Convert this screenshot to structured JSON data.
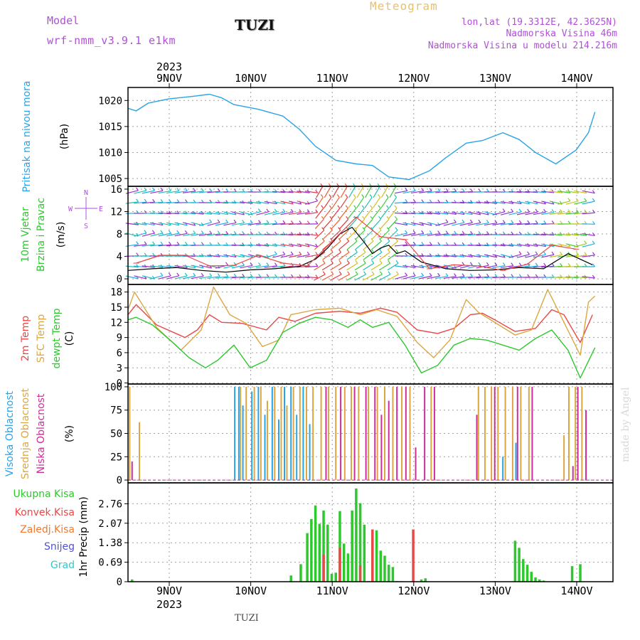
{
  "header": {
    "model_label": "Model",
    "model_name": "wrf-nmm_v3.9.1  e1km",
    "station": "TUZI",
    "product": "Meteogram",
    "lonlat": "lon,lat (19.3312E, 42.3625N)",
    "elevation": "Nadmorska Visina 46m",
    "model_elevation": "Nadmorska Visina u modelu 214.216m"
  },
  "footer": {
    "station": "TUZI",
    "credit": "made by Angel"
  },
  "colors": {
    "pressure": "#29a3e8",
    "temp2m": "#e84848",
    "sfc_temp": "#dca742",
    "dewpt": "#2ec82e",
    "cloud_high": "#29a3e8",
    "cloud_mid": "#dca742",
    "cloud_low": "#cc2e9a",
    "rain_total": "#2ec82e",
    "rain_conv": "#e84848",
    "rain_frozen": "#f07a32",
    "snow": "#5050e0",
    "graupel": "#2ecac8",
    "wind_speed": "#000000",
    "gust": "#e84848",
    "grid": "#a0a0a0",
    "frame": "#000000",
    "model_text": "#b050d8",
    "meteogram_text": "#e8c070"
  },
  "time_axis": {
    "year_label": "2023",
    "day_labels": [
      "9NOV",
      "10NOV",
      "11NOV",
      "12NOV",
      "13NOV",
      "14NOV"
    ]
  },
  "chart_data": [
    {
      "type": "line",
      "title": "",
      "ylabel": "Pritisak na nivou mora",
      "unit": "(hPa)",
      "ylim": [
        1003.5,
        1022.5
      ],
      "yticks": [
        "1005",
        "1010",
        "1015",
        "1020"
      ],
      "xlim": [
        0,
        5.73
      ],
      "grid": true,
      "series": [
        {
          "name": "Pritisak na nivou mora",
          "color": "#29a3e8",
          "x": [
            0.0,
            0.1,
            0.25,
            0.5,
            0.8,
            1.0,
            1.15,
            1.3,
            1.6,
            1.9,
            2.1,
            2.3,
            2.55,
            2.8,
            3.0,
            3.2,
            3.45,
            3.7,
            3.9,
            4.15,
            4.35,
            4.6,
            4.8,
            5.0,
            5.25,
            5.5,
            5.65,
            5.73
          ],
          "y": [
            1018.5,
            1018.0,
            1019.5,
            1020.3,
            1020.8,
            1021.2,
            1020.5,
            1019.2,
            1018.3,
            1017.0,
            1014.5,
            1011.2,
            1008.5,
            1007.8,
            1007.5,
            1005.3,
            1004.8,
            1006.5,
            1009.0,
            1011.8,
            1012.3,
            1013.8,
            1012.5,
            1010.0,
            1007.8,
            1010.5,
            1013.8,
            1017.8
          ]
        }
      ]
    },
    {
      "type": "line",
      "title": "",
      "ylabel": "10m Vjetar Brzina i Pravac",
      "unit": "(m/s)",
      "ylim": [
        -1,
        16.5
      ],
      "yticks": [
        "0",
        "4",
        "8",
        "12",
        "16"
      ],
      "xlim": [
        0,
        5.73
      ],
      "grid": true,
      "compass": [
        "N",
        "E",
        "S",
        "W"
      ],
      "series": [
        {
          "name": "wind speed",
          "color": "#000000",
          "x": [
            0.0,
            0.3,
            0.6,
            0.9,
            1.2,
            1.5,
            1.8,
            2.1,
            2.3,
            2.45,
            2.6,
            2.75,
            2.9,
            3.0,
            3.1,
            3.2,
            3.3,
            3.4,
            3.6,
            3.9,
            4.2,
            4.5,
            4.8,
            5.1,
            5.4,
            5.7
          ],
          "y": [
            1.5,
            1.8,
            2.0,
            1.5,
            1.2,
            1.6,
            1.8,
            2.2,
            3.5,
            5.5,
            8.0,
            9.2,
            6.5,
            4.5,
            5.5,
            6.0,
            4.5,
            5.0,
            3.0,
            1.8,
            1.5,
            1.6,
            2.0,
            1.8,
            4.5,
            2.5
          ]
        },
        {
          "name": "gust",
          "color": "#e84848",
          "x": [
            0.1,
            0.4,
            0.7,
            1.0,
            1.3,
            1.6,
            1.9,
            2.2,
            2.5,
            2.8,
            3.1,
            3.4,
            3.7,
            4.0,
            4.3,
            4.6,
            4.9,
            5.2,
            5.5
          ],
          "y": [
            2.8,
            4.2,
            4.2,
            2.3,
            2.4,
            4.2,
            2.8,
            2.3,
            6.6,
            11.0,
            7.5,
            7.0,
            1.8,
            2.5,
            2.3,
            1.5,
            2.6,
            6.0,
            5.3
          ]
        }
      ]
    },
    {
      "type": "line",
      "title": "",
      "ylabel": "2m Temp / SFC Temp / dewpt Temp",
      "unit": "(C)",
      "ylim": [
        -0.2,
        19.5
      ],
      "yticks": [
        "0",
        "3",
        "6",
        "9",
        "12",
        "15",
        "18"
      ],
      "xlim": [
        0,
        5.73
      ],
      "grid": true,
      "series": [
        {
          "name": "2m Temp",
          "color": "#e84848",
          "x": [
            0.0,
            0.1,
            0.35,
            0.7,
            0.85,
            1.0,
            1.15,
            1.4,
            1.7,
            1.85,
            2.05,
            2.3,
            2.6,
            2.85,
            3.1,
            3.3,
            3.55,
            3.8,
            4.0,
            4.2,
            4.35,
            4.5,
            4.75,
            5.0,
            5.2,
            5.35,
            5.55,
            5.7
          ],
          "y": [
            13.5,
            15.5,
            11.5,
            9.0,
            10.5,
            13.5,
            12.0,
            11.8,
            10.5,
            13.0,
            12.2,
            13.8,
            14.2,
            13.8,
            14.8,
            14.0,
            10.5,
            9.8,
            10.8,
            13.5,
            13.8,
            12.5,
            10.2,
            10.8,
            14.5,
            13.5,
            8.0,
            13.5
          ]
        },
        {
          "name": "SFC Temp",
          "color": "#dca742",
          "x": [
            0.0,
            0.08,
            0.35,
            0.65,
            0.9,
            1.05,
            1.25,
            1.45,
            1.65,
            1.85,
            2.0,
            2.3,
            2.6,
            2.85,
            3.05,
            3.3,
            3.55,
            3.75,
            3.95,
            4.15,
            4.3,
            4.55,
            4.75,
            4.95,
            5.15,
            5.35,
            5.55,
            5.65,
            5.73
          ],
          "y": [
            14.5,
            18.0,
            11.0,
            6.5,
            10.5,
            19.0,
            13.5,
            11.8,
            7.2,
            8.5,
            13.5,
            14.5,
            14.8,
            13.5,
            14.5,
            13.2,
            8.0,
            5.0,
            8.5,
            16.5,
            14.0,
            11.5,
            9.5,
            10.5,
            18.5,
            12.0,
            5.5,
            16.0,
            17.2
          ]
        },
        {
          "name": "dewpt Temp",
          "color": "#2ec82e",
          "x": [
            0.0,
            0.1,
            0.3,
            0.55,
            0.75,
            0.95,
            1.1,
            1.3,
            1.5,
            1.7,
            1.9,
            2.1,
            2.3,
            2.5,
            2.7,
            2.85,
            3.0,
            3.2,
            3.4,
            3.6,
            3.8,
            4.0,
            4.2,
            4.4,
            4.6,
            4.8,
            5.0,
            5.2,
            5.4,
            5.55,
            5.73
          ],
          "y": [
            12.5,
            13.0,
            11.5,
            8.0,
            5.0,
            3.0,
            4.5,
            7.5,
            3.0,
            4.5,
            10.0,
            11.8,
            13.0,
            12.5,
            11.0,
            12.5,
            11.0,
            12.0,
            7.5,
            2.0,
            3.5,
            7.5,
            8.8,
            8.5,
            7.5,
            6.5,
            8.8,
            10.5,
            6.5,
            1.0,
            7.0
          ]
        }
      ]
    },
    {
      "type": "bar",
      "title": "",
      "ylabel": "Visoka Oblacnost / Srednja Oblacnost / Niska Oblacnost",
      "unit": "(%)",
      "ylim": [
        -3,
        103
      ],
      "yticks": [
        "0",
        "25",
        "50",
        "75",
        "100"
      ],
      "xlim": [
        0,
        5.73
      ],
      "grid": true,
      "series": [
        {
          "name": "Visoka Oblacnost",
          "color": "#29a3e8",
          "x": [
            1.31,
            1.36,
            1.41,
            1.52,
            1.6,
            1.68,
            1.77,
            1.85,
            1.92,
            2.0,
            2.07,
            2.15,
            2.23,
            4.6,
            4.76
          ],
          "y": [
            100,
            100,
            80,
            95,
            100,
            70,
            100,
            65,
            100,
            100,
            70,
            100,
            60,
            25,
            40
          ]
        },
        {
          "name": "Srednja Oblacnost",
          "color": "#dca742",
          "x": [
            0.02,
            0.14,
            1.38,
            1.45,
            1.55,
            1.63,
            1.71,
            1.8,
            1.88,
            1.95,
            2.03,
            2.11,
            2.19,
            2.27,
            2.37,
            2.46,
            2.55,
            2.66,
            2.74,
            2.83,
            2.95,
            3.06,
            3.15,
            3.25,
            3.36,
            3.46,
            3.72,
            4.3,
            4.38,
            4.46,
            4.54,
            4.63,
            4.72,
            4.82,
            4.92,
            5.35,
            5.41,
            5.49,
            5.57
          ],
          "y": [
            100,
            62,
            100,
            100,
            100,
            100,
            85,
            100,
            100,
            80,
            100,
            100,
            100,
            100,
            100,
            100,
            100,
            100,
            100,
            100,
            100,
            100,
            100,
            100,
            100,
            100,
            100,
            100,
            100,
            100,
            100,
            100,
            100,
            100,
            100,
            48,
            100,
            100,
            100
          ]
        },
        {
          "name": "Niska Oblacnost",
          "color": "#cc2e9a",
          "x": [
            0.05,
            2.43,
            2.61,
            2.78,
            2.92,
            3.03,
            3.11,
            3.2,
            3.3,
            3.41,
            3.53,
            3.64,
            3.76,
            4.28,
            4.5,
            4.78,
            4.96,
            5.46,
            5.52,
            5.62
          ],
          "y": [
            20,
            100,
            100,
            100,
            100,
            100,
            70,
            85,
            100,
            100,
            35,
            100,
            100,
            70,
            100,
            100,
            100,
            15,
            100,
            75
          ]
        }
      ]
    },
    {
      "type": "bar",
      "title": "",
      "ylabel": "1hr Precip",
      "unit": "(mm)",
      "ylim": [
        0,
        3.5
      ],
      "yticks": [
        "0",
        "0.69",
        "1.38",
        "2.07",
        "2.76"
      ],
      "xlim": [
        0,
        5.73
      ],
      "grid": true,
      "series": [
        {
          "name": "Ukupna Kisa",
          "color": "#2ec82e",
          "x": [
            0.05,
            2.0,
            2.12,
            2.2,
            2.25,
            2.3,
            2.35,
            2.4,
            2.45,
            2.5,
            2.55,
            2.6,
            2.65,
            2.7,
            2.75,
            2.8,
            2.85,
            2.9,
            2.95,
            3.0,
            3.05,
            3.1,
            3.15,
            3.2,
            3.25,
            3.3,
            3.35,
            3.6,
            3.65,
            4.5,
            4.75,
            4.8,
            4.85,
            4.9,
            4.95,
            5.0,
            5.05,
            5.1,
            5.45,
            5.55
          ],
          "y": [
            0.08,
            0.22,
            0.62,
            1.72,
            2.22,
            2.7,
            2.05,
            2.52,
            2.02,
            0.28,
            0.32,
            2.5,
            1.35,
            1.0,
            2.52,
            3.3,
            2.78,
            2.02,
            0.02,
            1.52,
            1.82,
            1.1,
            0.92,
            0.6,
            0.52,
            0.02,
            0.02,
            0.08,
            0.12,
            0.02,
            1.45,
            1.2,
            0.8,
            0.6,
            0.35,
            0.15,
            0.08,
            0.04,
            0.55,
            0.62
          ]
        },
        {
          "name": "Konvek.Kisa",
          "color": "#e84848",
          "x": [
            2.4,
            2.6,
            2.85,
            3.0,
            3.5
          ],
          "y": [
            0.95,
            1.2,
            0.58,
            1.85,
            1.85
          ]
        },
        {
          "name": "Zaledj.Kisa",
          "color": "#f07a32",
          "x": [],
          "y": []
        },
        {
          "name": "Snijeg",
          "color": "#5050e0",
          "x": [],
          "y": []
        },
        {
          "name": "Grad",
          "color": "#2ecac8",
          "x": [],
          "y": []
        }
      ]
    }
  ]
}
